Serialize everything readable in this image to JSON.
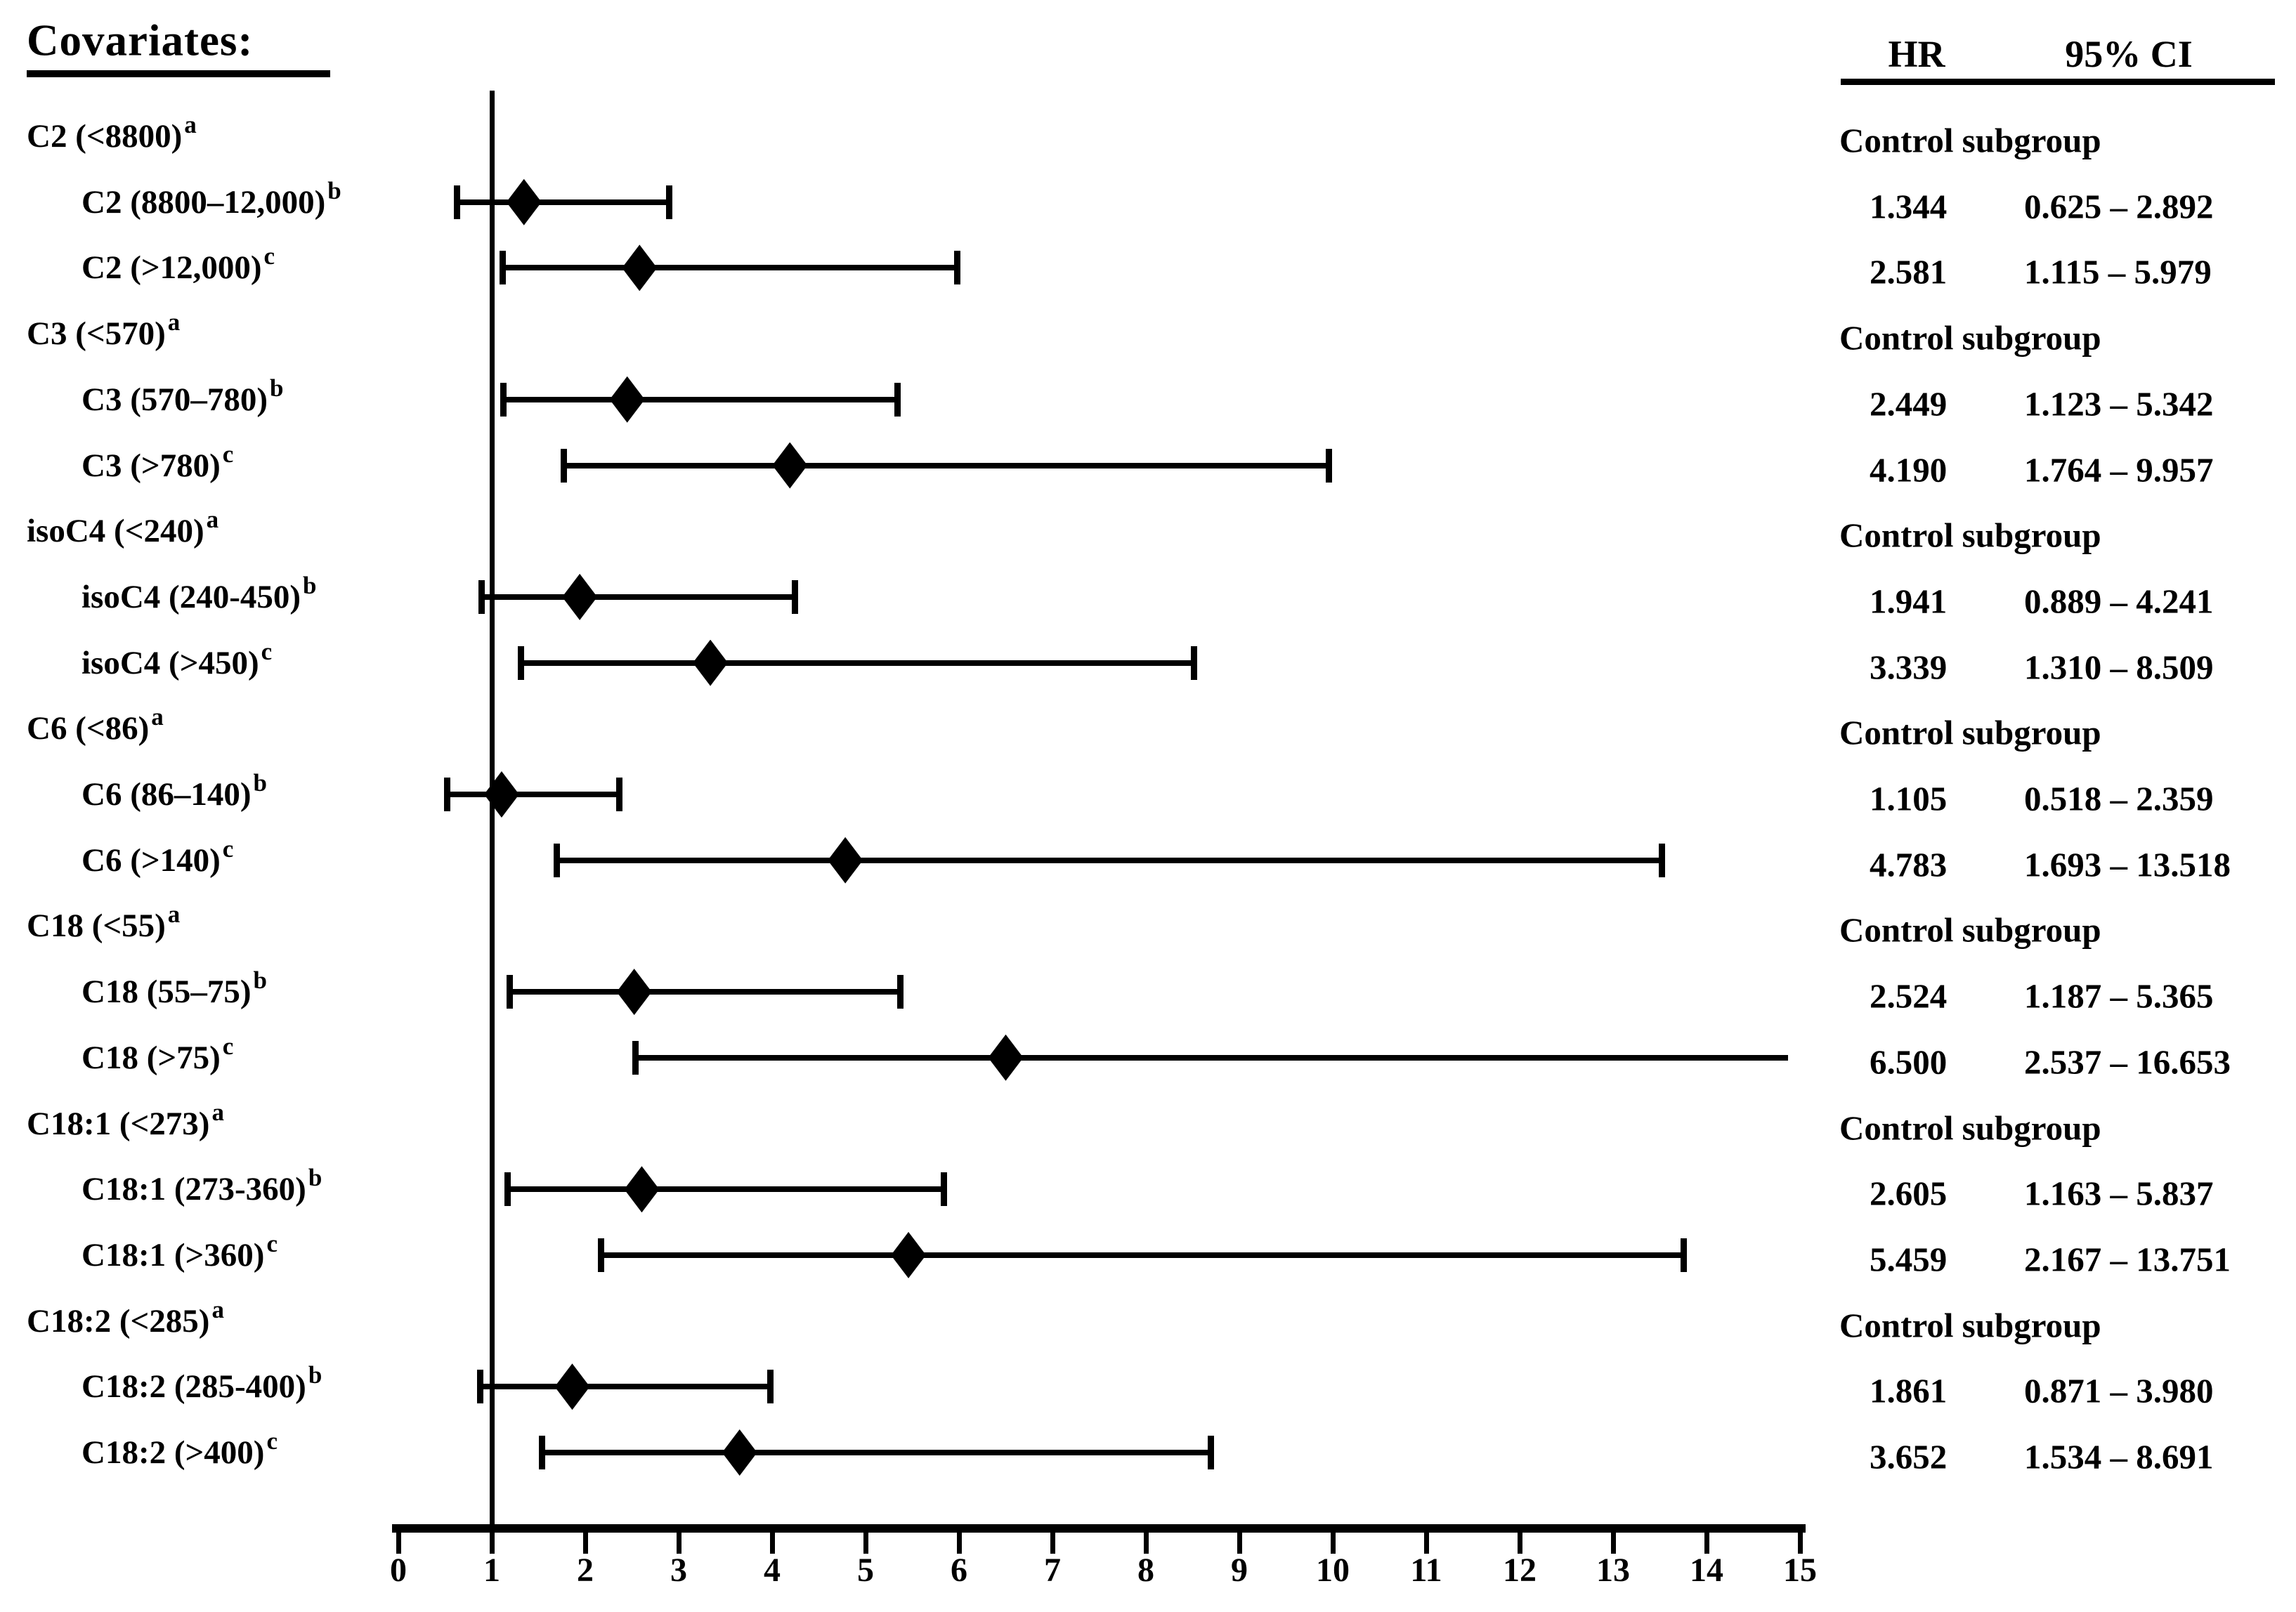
{
  "title": "Covariates:",
  "table": {
    "hr_header": "HR",
    "ci_header": "95% CI",
    "control_label": "Control subgroup"
  },
  "chart_data": {
    "type": "scatter",
    "variant": "forest-plot",
    "title": "Covariates:",
    "xlabel": "",
    "ylabel": "",
    "xlim": [
      0,
      15
    ],
    "x_ticks": [
      "0",
      "1",
      "2",
      "3",
      "4",
      "5",
      "6",
      "7",
      "8",
      "9",
      "10",
      "11",
      "12",
      "13",
      "14",
      "15"
    ],
    "reference_x": 1,
    "legend": "none",
    "grid": false,
    "groups": [
      {
        "reference": {
          "label": "C2 (<8800)",
          "sup": "a"
        },
        "entries": [
          {
            "label": "C2 (8800–12,000)",
            "sup": "b",
            "hr": 1.344,
            "ci_low": 0.625,
            "ci_high": 2.892,
            "hr_text": "1.344",
            "ci_text": "0.625 – 2.892"
          },
          {
            "label": "C2 (>12,000)",
            "sup": "c",
            "hr": 2.581,
            "ci_low": 1.115,
            "ci_high": 5.979,
            "hr_text": "2.581",
            "ci_text": "1.115 – 5.979"
          }
        ]
      },
      {
        "reference": {
          "label": "C3 (<570)",
          "sup": "a"
        },
        "entries": [
          {
            "label": "C3 (570–780)",
            "sup": "b",
            "hr": 2.449,
            "ci_low": 1.123,
            "ci_high": 5.342,
            "hr_text": "2.449",
            "ci_text": "1.123 – 5.342"
          },
          {
            "label": "C3 (>780)",
            "sup": "c",
            "hr": 4.19,
            "ci_low": 1.764,
            "ci_high": 9.957,
            "hr_text": "4.190",
            "ci_text": "1.764 – 9.957"
          }
        ]
      },
      {
        "reference": {
          "label": "isoC4 (<240)",
          "sup": "a"
        },
        "entries": [
          {
            "label": "isoC4 (240-450)",
            "sup": "b",
            "hr": 1.941,
            "ci_low": 0.889,
            "ci_high": 4.241,
            "hr_text": "1.941",
            "ci_text": "0.889 – 4.241"
          },
          {
            "label": "isoC4 (>450)",
            "sup": "c",
            "hr": 3.339,
            "ci_low": 1.31,
            "ci_high": 8.509,
            "hr_text": "3.339",
            "ci_text": "1.310 – 8.509"
          }
        ]
      },
      {
        "reference": {
          "label": "C6 (<86)",
          "sup": "a"
        },
        "entries": [
          {
            "label": "C6  (86–140)",
            "sup": "b",
            "hr": 1.105,
            "ci_low": 0.518,
            "ci_high": 2.359,
            "hr_text": "1.105",
            "ci_text": "0.518 – 2.359"
          },
          {
            "label": "C6 (>140)",
            "sup": "c",
            "hr": 4.783,
            "ci_low": 1.693,
            "ci_high": 13.518,
            "hr_text": "4.783",
            "ci_text": "1.693 – 13.518"
          }
        ]
      },
      {
        "reference": {
          "label": "C18 (<55)",
          "sup": "a"
        },
        "entries": [
          {
            "label": "C18 (55–75)",
            "sup": "b",
            "hr": 2.524,
            "ci_low": 1.187,
            "ci_high": 5.365,
            "hr_text": "2.524",
            "ci_text": "1.187 – 5.365"
          },
          {
            "label": "C18 (>75)",
            "sup": "c",
            "hr": 6.5,
            "ci_low": 2.537,
            "ci_high": 16.653,
            "hr_text": "6.500",
            "ci_text": "2.537 – 16.653"
          }
        ]
      },
      {
        "reference": {
          "label": "C18:1 (<273)",
          "sup": "a"
        },
        "entries": [
          {
            "label": "C18:1 (273-360)",
            "sup": "b",
            "hr": 2.605,
            "ci_low": 1.163,
            "ci_high": 5.837,
            "hr_text": "2.605",
            "ci_text": "1.163 – 5.837"
          },
          {
            "label": "C18:1 (>360)",
            "sup": "c",
            "hr": 5.459,
            "ci_low": 2.167,
            "ci_high": 13.751,
            "hr_text": "5.459",
            "ci_text": "2.167 – 13.751"
          }
        ]
      },
      {
        "reference": {
          "label": "C18:2 (<285)",
          "sup": "a"
        },
        "entries": [
          {
            "label": "C18:2 (285-400)",
            "sup": "b",
            "hr": 1.861,
            "ci_low": 0.871,
            "ci_high": 3.98,
            "hr_text": "1.861",
            "ci_text": "0.871 – 3.980"
          },
          {
            "label": "C18:2 (>400)",
            "sup": "c",
            "hr": 3.652,
            "ci_low": 1.534,
            "ci_high": 8.691,
            "hr_text": "3.652",
            "ci_text": "1.534 – 8.691"
          }
        ]
      }
    ]
  }
}
